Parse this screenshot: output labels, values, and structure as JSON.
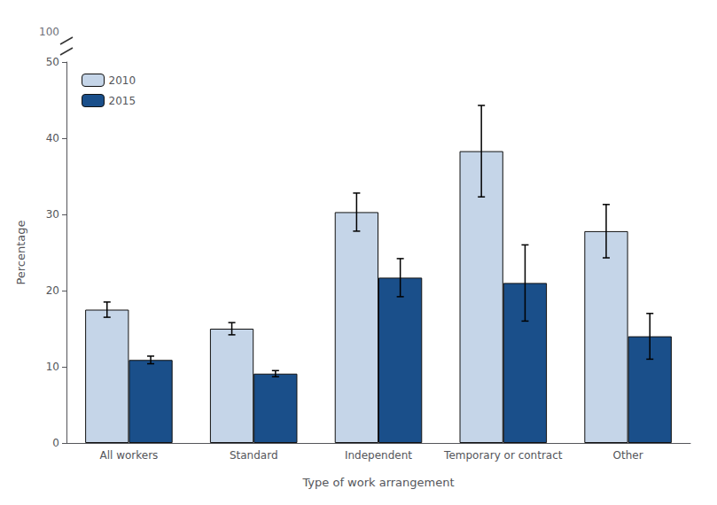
{
  "chart_data": {
    "type": "bar",
    "categories": [
      "All workers",
      "Standard",
      "Independent",
      "Temporary or contract",
      "Other"
    ],
    "series": [
      {
        "name": "2010",
        "color": "#c5d5e8",
        "values": [
          17.5,
          15.0,
          30.3,
          38.3,
          27.8
        ],
        "error_lower": [
          1.0,
          0.8,
          2.5,
          6.0,
          3.5
        ],
        "error_upper": [
          1.0,
          0.8,
          2.5,
          6.0,
          3.5
        ]
      },
      {
        "name": "2015",
        "color": "#1a4f8a",
        "values": [
          10.9,
          9.1,
          21.7,
          21.0,
          14.0
        ],
        "error_lower": [
          0.5,
          0.4,
          2.5,
          5.0,
          3.0
        ],
        "error_upper": [
          0.5,
          0.4,
          2.5,
          5.0,
          3.0
        ]
      }
    ],
    "xlabel": "Type of work arrangement",
    "ylabel": "Percentage",
    "ylim": [
      0,
      50
    ],
    "yticks": [
      0,
      10,
      20,
      30,
      40,
      50
    ],
    "annotations": [
      "100"
    ],
    "legend": "upper left",
    "grid": false
  }
}
